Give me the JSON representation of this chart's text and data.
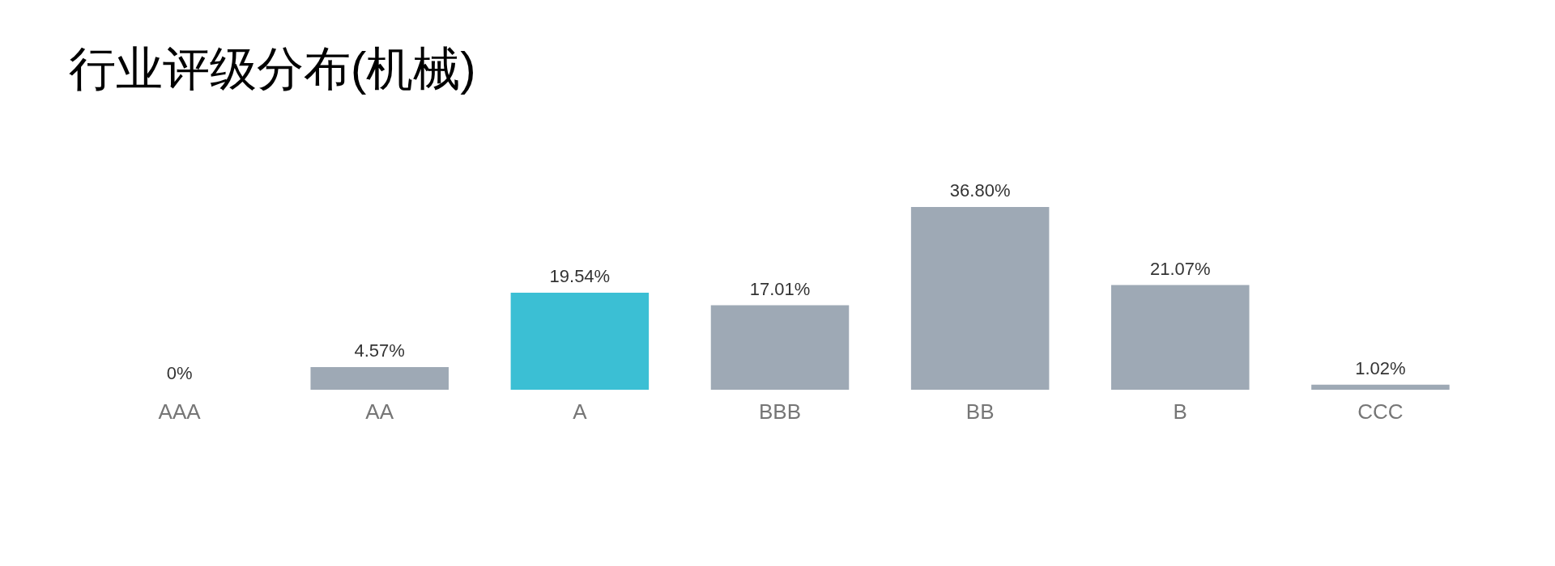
{
  "chart_data": {
    "type": "bar",
    "title": "行业评级分布(机械)",
    "categories": [
      "AAA",
      "AA",
      "A",
      "BBB",
      "BB",
      "B",
      "CCC"
    ],
    "values": [
      0,
      4.57,
      19.54,
      17.01,
      36.8,
      21.07,
      1.02
    ],
    "value_labels": [
      "0%",
      "4.57%",
      "19.54%",
      "17.01%",
      "36.80%",
      "21.07%",
      "1.02%"
    ],
    "colors": [
      "#9ea9b5",
      "#9ea9b5",
      "#3bbfd4",
      "#9ea9b5",
      "#9ea9b5",
      "#9ea9b5",
      "#9ea9b5"
    ],
    "grid": false,
    "legend": false
  }
}
